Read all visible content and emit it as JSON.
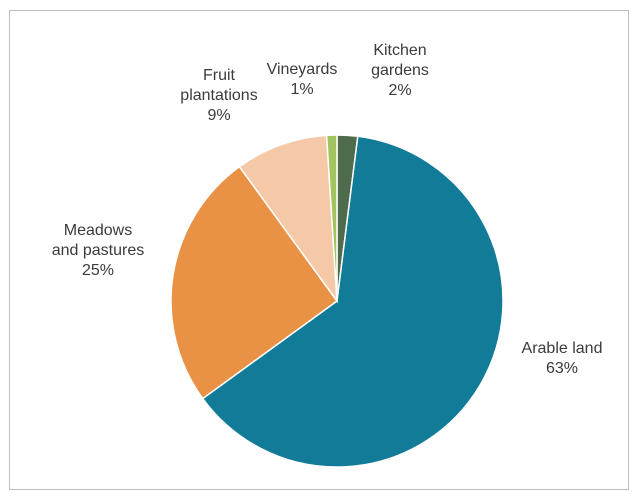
{
  "chart_data": {
    "type": "pie",
    "title": "",
    "legend": "none",
    "start_angle_deg": 0,
    "direction": "clockwise",
    "slices": [
      {
        "label_lines": [
          "Kitchen",
          "gardens"
        ],
        "category": "Kitchen gardens",
        "value": 2,
        "value_label": "2%",
        "color": "#4e6b4c"
      },
      {
        "label_lines": [
          "Arable land"
        ],
        "category": "Arable land",
        "value": 63,
        "value_label": "63%",
        "color": "#117b98"
      },
      {
        "label_lines": [
          "Meadows",
          "and pastures"
        ],
        "category": "Meadows and pastures",
        "value": 25,
        "value_label": "25%",
        "color": "#e99145"
      },
      {
        "label_lines": [
          "Fruit",
          "plantations"
        ],
        "category": "Fruit plantations",
        "value": 9,
        "value_label": "9%",
        "color": "#f5c9a8"
      },
      {
        "label_lines": [
          "Vineyards"
        ],
        "category": "Vineyards",
        "value": 1,
        "value_label": "1%",
        "color": "#a3c35f"
      }
    ]
  }
}
